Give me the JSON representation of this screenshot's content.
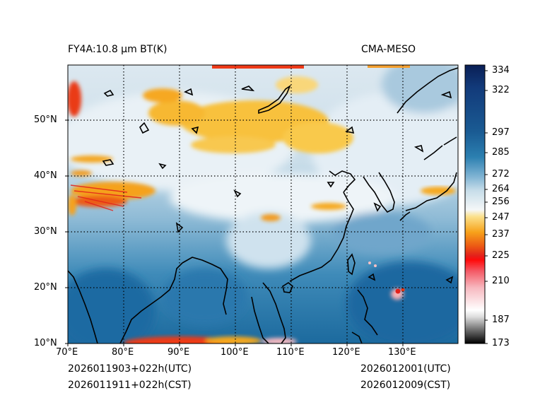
{
  "header": {
    "left_title": "FY4A:10.8 µm BT(K)",
    "right_title": "CMA-MESO"
  },
  "footer": {
    "init_utc": "2026011903+022h(UTC)",
    "init_cst": "2026011911+022h(CST)",
    "valid_utc": "2026012001(UTC)",
    "valid_cst": "2026012009(CST)"
  },
  "map": {
    "lon_labels": [
      "70°E",
      "80°E",
      "90°E",
      "100°E",
      "110°E",
      "120°E",
      "130°E"
    ],
    "lat_labels": [
      "50°N",
      "40°N",
      "30°N",
      "20°N",
      "10°N"
    ]
  },
  "colorbar": {
    "ticks": [
      "334",
      "322",
      "297",
      "285",
      "272",
      "264",
      "256",
      "247",
      "237",
      "225",
      "210",
      "187",
      "173"
    ],
    "colors": {
      "warm_deep": "#0b2a66",
      "warm_mid": "#1f6fa3",
      "neutral": "#f4f8fb",
      "cold_orange": "#f7b52d",
      "cold_red": "#e3201b",
      "pink": "#f6c0c4",
      "gray": "#555555"
    }
  }
}
